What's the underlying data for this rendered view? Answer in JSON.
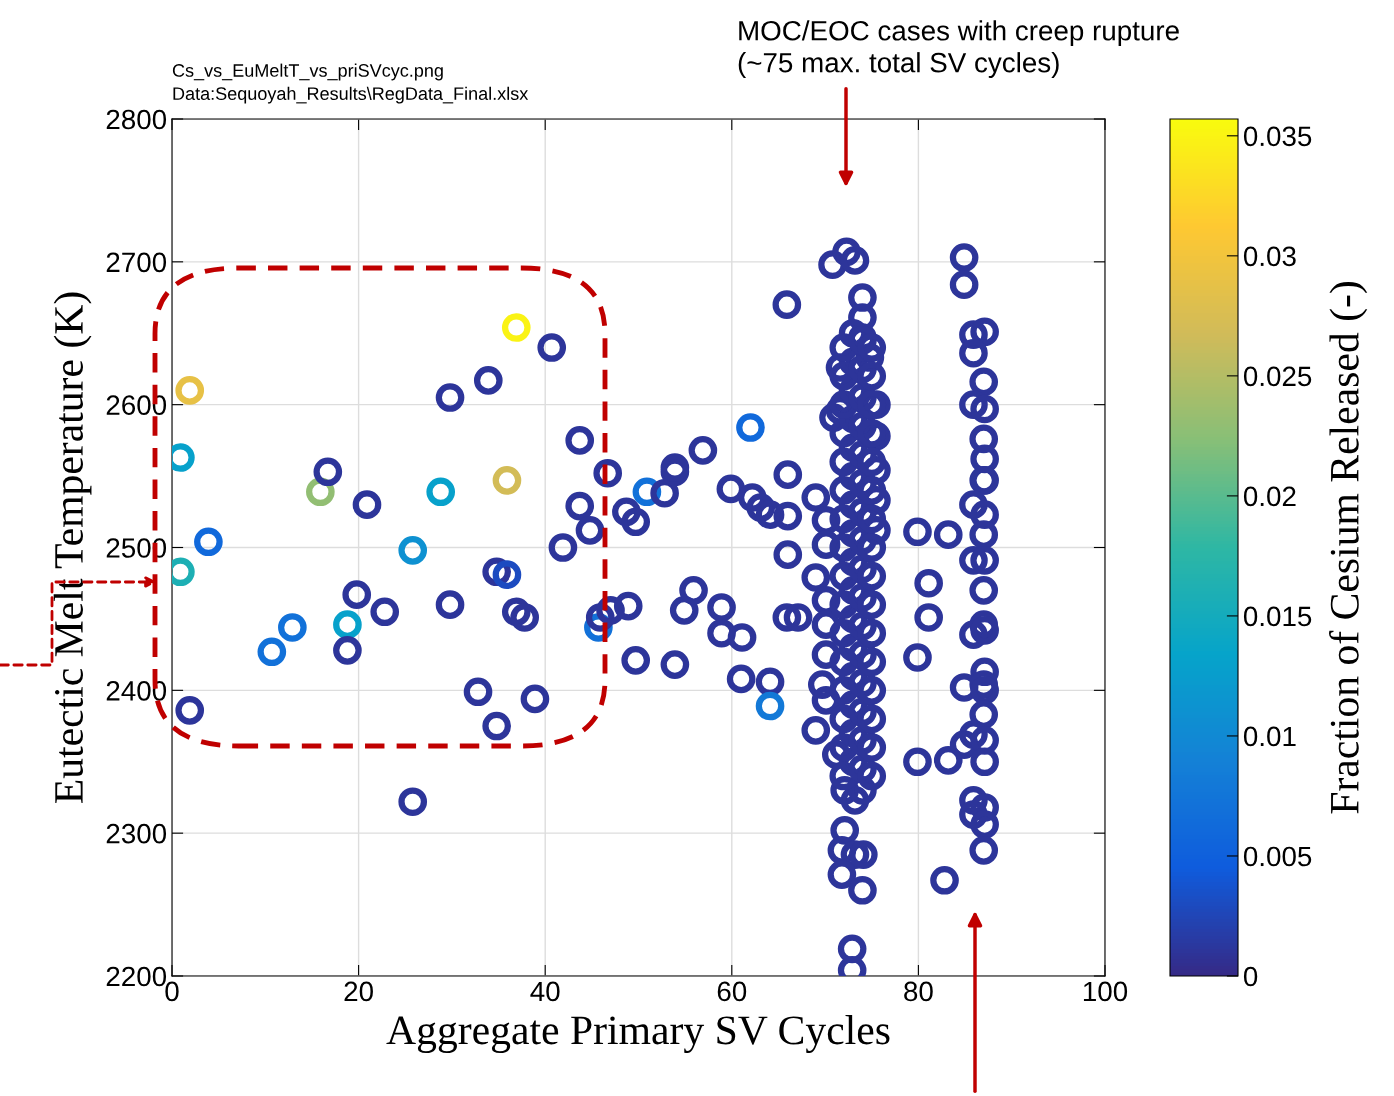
{
  "chart_data": {
    "type": "scatter",
    "xlabel": "Aggregate Primary SV Cycles",
    "ylabel": "Eutectic Melt Temperature (K)",
    "clabel": "Fraction of Cesium Released (-)",
    "xlim": [
      0,
      100
    ],
    "xticks": [
      0,
      20,
      40,
      60,
      80,
      100
    ],
    "ylim": [
      2200,
      2800
    ],
    "yticks": [
      2200,
      2300,
      2400,
      2500,
      2600,
      2700,
      2800
    ],
    "clim": [
      0,
      0.0357
    ],
    "cticks": [
      0,
      0.005,
      0.01,
      0.015,
      0.02,
      0.025,
      0.03,
      0.035
    ],
    "grid": true,
    "marker": "circle",
    "annotations": [
      "Cs_vs_EuMeltT_vs_priSVcyc.png",
      "Data:Sequoyah_Results\\RegData_Final.xlsx",
      "MOC/EOC cases with creep rupture\n(~75 max. total SV cycles)"
    ],
    "x": [
      1.9,
      0.9,
      0.9,
      3.9,
      1.9,
      10.7,
      12.9,
      15.9,
      16.7,
      18.8,
      18.8,
      19.8,
      20.9,
      22.8,
      25.8,
      25.8,
      28.8,
      29.8,
      29.8,
      32.8,
      33.9,
      34.8,
      35.9,
      35.9,
      36.9,
      34.8,
      36.9,
      37.8,
      38.9,
      40.7,
      41.9,
      43.7,
      43.7,
      44.8,
      46.7,
      45.7,
      45.9,
      47,
      48.9,
      48.7,
      49.7,
      49.7,
      50.9,
      52.8,
      53.9,
      53.9,
      54.9,
      55.9,
      53.9,
      56.9,
      58.9,
      58.9,
      59.9,
      62.2,
      63.1,
      64.1,
      62,
      61.1,
      61,
      64.1,
      64.1,
      65.9,
      66,
      66,
      66,
      65.9,
      67.1,
      69,
      69,
      69,
      70.8,
      72.3,
      73.2,
      74,
      74,
      74,
      74.8,
      71.6,
      71.6,
      70.9,
      75.5,
      75.5,
      75.5,
      75.5,
      75.5,
      70.1,
      70.1,
      70.1,
      70.1,
      70.1,
      69.7,
      70.1,
      71.2,
      72.1,
      73.2,
      74,
      72.1,
      71.8,
      73.2,
      74.1,
      71.8,
      74,
      72.9,
      72.9,
      72,
      73,
      74,
      75,
      72,
      73,
      74,
      75,
      72,
      73,
      74,
      75,
      72,
      73,
      74,
      75,
      72,
      73,
      74,
      75,
      72,
      73,
      74,
      75,
      72,
      73,
      74,
      75,
      72,
      73,
      74,
      75,
      72,
      73,
      74,
      75,
      72,
      73,
      74,
      75,
      72,
      73,
      74,
      75,
      72,
      73,
      74,
      75,
      72,
      73,
      74,
      75,
      72,
      73,
      74,
      75,
      72,
      73,
      74,
      75,
      72,
      73,
      74,
      75,
      79.9,
      81.1,
      81.1,
      79.9,
      79.9,
      84.9,
      84.9,
      83.2,
      82.8,
      83.2,
      84.9,
      84.9,
      85.9,
      87.1,
      85.9,
      87,
      85.9,
      87.1,
      87,
      87.1,
      87,
      87.1,
      85.9,
      87.1,
      87,
      85.9,
      87.1,
      87,
      87,
      85.9,
      87.1,
      87.1,
      87,
      87.1,
      87,
      85.9,
      87.1,
      87.1,
      85.9,
      85.9,
      87.1,
      87.1,
      87
    ],
    "values": [
      2610,
      2563,
      2483,
      2504,
      2386,
      2427,
      2444,
      2539,
      2553,
      2446,
      2428,
      2467,
      2530,
      2455,
      2498,
      2322,
      2539,
      2605,
      2460,
      2399,
      2617,
      2483,
      2481,
      2547,
      2654,
      2375,
      2455,
      2451,
      2394,
      2640,
      2500,
      2575,
      2529,
      2512,
      2552,
      2444,
      2451,
      2456,
      2459,
      2525,
      2518,
      2421,
      2539,
      2538,
      2553,
      2556,
      2456,
      2470,
      2418,
      2568,
      2458,
      2440,
      2541,
      2535,
      2528,
      2523,
      2584,
      2437,
      2408,
      2406,
      2389,
      2670,
      2551,
      2495,
      2522,
      2451,
      2451,
      2479,
      2372,
      2535,
      2698,
      2707,
      2701,
      2675,
      2661,
      2647,
      2633,
      2626,
      2596,
      2591,
      2600,
      2578,
      2554,
      2533,
      2512,
      2519,
      2502,
      2463,
      2446,
      2425,
      2404,
      2393,
      2355,
      2330,
      2323,
      2330,
      2302,
      2288,
      2285,
      2285,
      2271,
      2260,
      2219,
      2204,
      2340,
      2350,
      2345,
      2340,
      2360,
      2370,
      2365,
      2360,
      2380,
      2390,
      2385,
      2380,
      2400,
      2410,
      2405,
      2400,
      2420,
      2430,
      2425,
      2420,
      2440,
      2450,
      2445,
      2440,
      2460,
      2470,
      2465,
      2460,
      2480,
      2490,
      2485,
      2480,
      2500,
      2510,
      2505,
      2500,
      2520,
      2530,
      2525,
      2520,
      2540,
      2550,
      2545,
      2540,
      2560,
      2570,
      2565,
      2560,
      2580,
      2590,
      2585,
      2580,
      2600,
      2610,
      2605,
      2600,
      2620,
      2630,
      2625,
      2620,
      2640,
      2650,
      2645,
      2640,
      2511,
      2475,
      2451,
      2423,
      2350,
      2703,
      2684,
      2509,
      2267,
      2351,
      2362,
      2402,
      2649,
      2651,
      2636,
      2616,
      2600,
      2597,
      2576,
      2562,
      2547,
      2547,
      2530,
      2523,
      2509,
      2491,
      2491,
      2470,
      2446,
      2439,
      2442,
      2413,
      2404,
      2400,
      2383,
      2369,
      2365,
      2350,
      2323,
      2313,
      2318,
      2306,
      2288
    ],
    "cvalues": [
      0.029,
      0.013,
      0.016,
      0.006,
      0.001,
      0.007,
      0.007,
      0.023,
      0.001,
      0.013,
      0.001,
      0.001,
      0.001,
      0.001,
      0.011,
      0.001,
      0.013,
      0.001,
      0.001,
      0.001,
      0.001,
      0.001,
      0.003,
      0.027,
      0.035,
      0.001,
      0.001,
      0.001,
      0.001,
      0.001,
      0.001,
      0.001,
      0.001,
      0.001,
      0.001,
      0.007,
      0.001,
      0.001,
      0.001,
      0.001,
      0.001,
      0.001,
      0.007,
      0.001,
      0.001,
      0.001,
      0.001,
      0.001,
      0.001,
      0.001,
      0.001,
      0.001,
      0.001,
      0.001,
      0.001,
      0.001,
      0.006,
      0.001,
      0.001,
      0.001,
      0.008,
      0.001,
      0.001,
      0.001,
      0.001,
      0.001,
      0.001,
      0.001,
      0.001,
      0.001,
      0.001,
      0.001,
      0.001,
      0.001,
      0.001,
      0.001,
      0.001,
      0.001,
      0.001,
      0.001,
      0.001,
      0.001,
      0.001,
      0.001,
      0.001,
      0.001,
      0.001,
      0.001,
      0.001,
      0.001,
      0.001,
      0.001,
      0.001,
      0.001,
      0.001,
      0.001,
      0.001,
      0.001,
      0.001,
      0.001,
      0.001,
      0.001,
      0.001,
      0.001,
      0.001,
      0.001,
      0.001,
      0.001,
      0.001,
      0.001,
      0.001,
      0.001,
      0.001,
      0.001,
      0.001,
      0.001,
      0.001,
      0.001,
      0.001,
      0.001,
      0.001,
      0.001,
      0.001,
      0.001,
      0.001,
      0.001,
      0.001,
      0.001,
      0.001,
      0.001,
      0.001,
      0.001,
      0.001,
      0.001,
      0.001,
      0.001,
      0.001,
      0.001,
      0.001,
      0.001,
      0.001,
      0.001,
      0.001,
      0.001,
      0.001,
      0.001,
      0.001,
      0.001,
      0.001,
      0.001,
      0.001,
      0.001,
      0.001,
      0.001,
      0.001,
      0.001,
      0.001,
      0.001,
      0.001,
      0.001,
      0.001,
      0.001,
      0.001,
      0.001,
      0.001,
      0.001,
      0.001,
      0.001,
      0.001,
      0.001,
      0.001,
      0.001,
      0.001,
      0.001,
      0.001,
      0.001,
      0.001,
      0.001,
      0.001,
      0.001,
      0.001,
      0.001,
      0.001,
      0.001,
      0.001,
      0.001,
      0.001,
      0.001,
      0.001,
      0.001,
      0.001,
      0.001,
      0.001,
      0.001,
      0.001,
      0.001,
      0.001,
      0.001,
      0.001,
      0.001,
      0.001,
      0.001,
      0.001,
      0.001,
      0.001,
      0.001,
      0.001,
      0.001,
      0.001,
      0.001,
      0.001
    ]
  }
}
